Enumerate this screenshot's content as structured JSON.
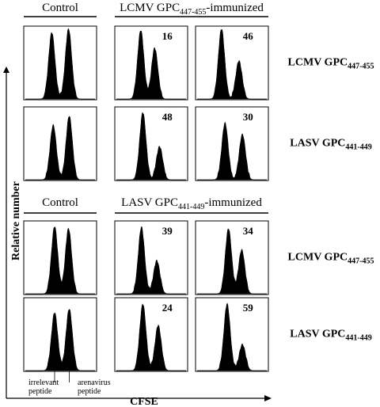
{
  "chart_data": {
    "type": "area",
    "xlabel": "CFSE",
    "ylabel": "Relative number",
    "panels": [
      {
        "group_labels": [
          {
            "text": "Control"
          },
          {
            "text": "LCMV GPC",
            "sub": "447-455",
            "suffix": "-immunized"
          }
        ],
        "rows": [
          {
            "label": "LCMV GPC",
            "label_sub": "447-455",
            "cells": [
              {
                "percent": "",
                "peaks": [
                  [
                    0.38,
                    0.92
                  ],
                  [
                    0.62,
                    0.97
                  ]
                ]
              },
              {
                "percent": "16",
                "peaks": [
                  [
                    0.35,
                    0.95
                  ],
                  [
                    0.55,
                    0.7
                  ]
                ]
              },
              {
                "percent": "46",
                "peaks": [
                  [
                    0.35,
                    0.97
                  ],
                  [
                    0.6,
                    0.52
                  ]
                ]
              }
            ]
          },
          {
            "label": "LASV GPC",
            "label_sub": "441-449",
            "cells": [
              {
                "percent": "",
                "peaks": [
                  [
                    0.4,
                    0.75
                  ],
                  [
                    0.63,
                    0.88
                  ]
                ]
              },
              {
                "percent": "48",
                "peaks": [
                  [
                    0.38,
                    0.93
                  ],
                  [
                    0.62,
                    0.45
                  ]
                ]
              },
              {
                "percent": "30",
                "peaks": [
                  [
                    0.4,
                    0.78
                  ],
                  [
                    0.65,
                    0.62
                  ]
                ]
              }
            ]
          }
        ]
      },
      {
        "group_labels": [
          {
            "text": "Control"
          },
          {
            "text": "LASV GPC",
            "sub": "441-449",
            "suffix": "-immunized"
          }
        ],
        "rows": [
          {
            "label": "LCMV GPC",
            "label_sub": "447-455",
            "cells": [
              {
                "percent": "",
                "peaks": [
                  [
                    0.42,
                    0.93
                  ],
                  [
                    0.62,
                    0.9
                  ]
                ]
              },
              {
                "percent": "39",
                "peaks": [
                  [
                    0.36,
                    0.92
                  ],
                  [
                    0.58,
                    0.45
                  ]
                ]
              },
              {
                "percent": "34",
                "peaks": [
                  [
                    0.45,
                    0.9
                  ],
                  [
                    0.64,
                    0.6
                  ]
                ]
              }
            ]
          },
          {
            "label": "LASV GPC",
            "label_sub": "441-449",
            "cells": [
              {
                "percent": "",
                "peaks": [
                  [
                    0.42,
                    0.8
                  ],
                  [
                    0.63,
                    0.85
                  ]
                ]
              },
              {
                "percent": "24",
                "peaks": [
                  [
                    0.38,
                    0.92
                  ],
                  [
                    0.6,
                    0.62
                  ]
                ]
              },
              {
                "percent": "59",
                "peaks": [
                  [
                    0.43,
                    0.92
                  ],
                  [
                    0.65,
                    0.35
                  ]
                ]
              }
            ]
          }
        ]
      }
    ],
    "annotations": [
      {
        "text": [
          "irrelevant",
          "peptide"
        ],
        "peak_index": 0
      },
      {
        "text": [
          "arenavirus",
          "peptide"
        ],
        "peak_index": 1
      }
    ]
  }
}
